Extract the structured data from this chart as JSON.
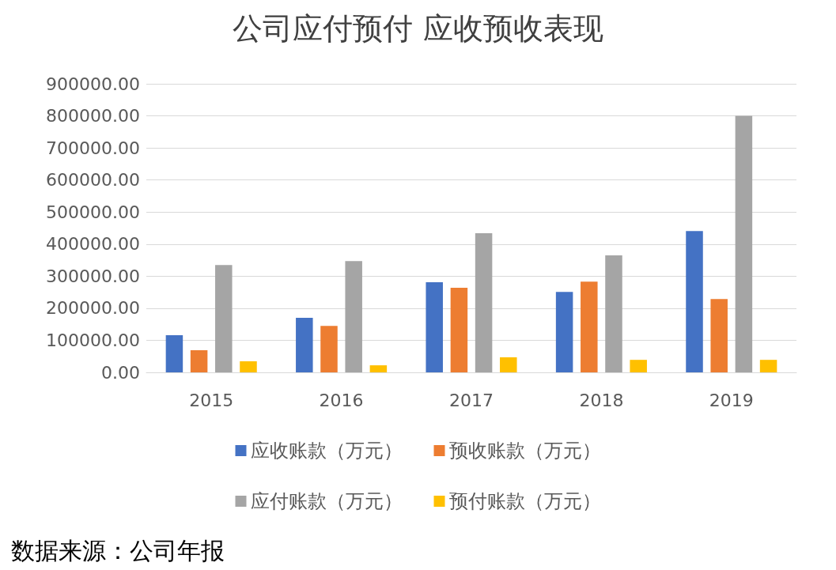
{
  "chart_data": {
    "type": "bar",
    "title": "公司应付预付 应收预收表现",
    "categories": [
      "2015",
      "2016",
      "2017",
      "2018",
      "2019"
    ],
    "series": [
      {
        "name": "应收账款（万元）",
        "color": "#4472c4",
        "values": [
          116000,
          170000,
          281000,
          251000,
          441000
        ]
      },
      {
        "name": "预收账款（万元）",
        "color": "#ed7d31",
        "values": [
          69000,
          145000,
          264000,
          283000,
          229000
        ]
      },
      {
        "name": "应付账款（万元）",
        "color": "#a5a5a5",
        "values": [
          335000,
          347000,
          434000,
          365000,
          800000
        ]
      },
      {
        "name": "预付账款（万元）",
        "color": "#ffc000",
        "values": [
          34500,
          22000,
          47000,
          39000,
          39000
        ]
      }
    ],
    "ylim": [
      0,
      900000
    ],
    "yticks": [
      {
        "value": 0,
        "label": "0.00"
      },
      {
        "value": 100000,
        "label": "100000.00"
      },
      {
        "value": 200000,
        "label": "200000.00"
      },
      {
        "value": 300000,
        "label": "300000.00"
      },
      {
        "value": 400000,
        "label": "400000.00"
      },
      {
        "value": 500000,
        "label": "500000.00"
      },
      {
        "value": 600000,
        "label": "600000.00"
      },
      {
        "value": 700000,
        "label": "700000.00"
      },
      {
        "value": 800000,
        "label": "800000.00"
      },
      {
        "value": 900000,
        "label": "900000.00"
      }
    ],
    "grid": "y",
    "legend": "bottom",
    "annotations": [
      "数据来源：公司年报"
    ]
  }
}
